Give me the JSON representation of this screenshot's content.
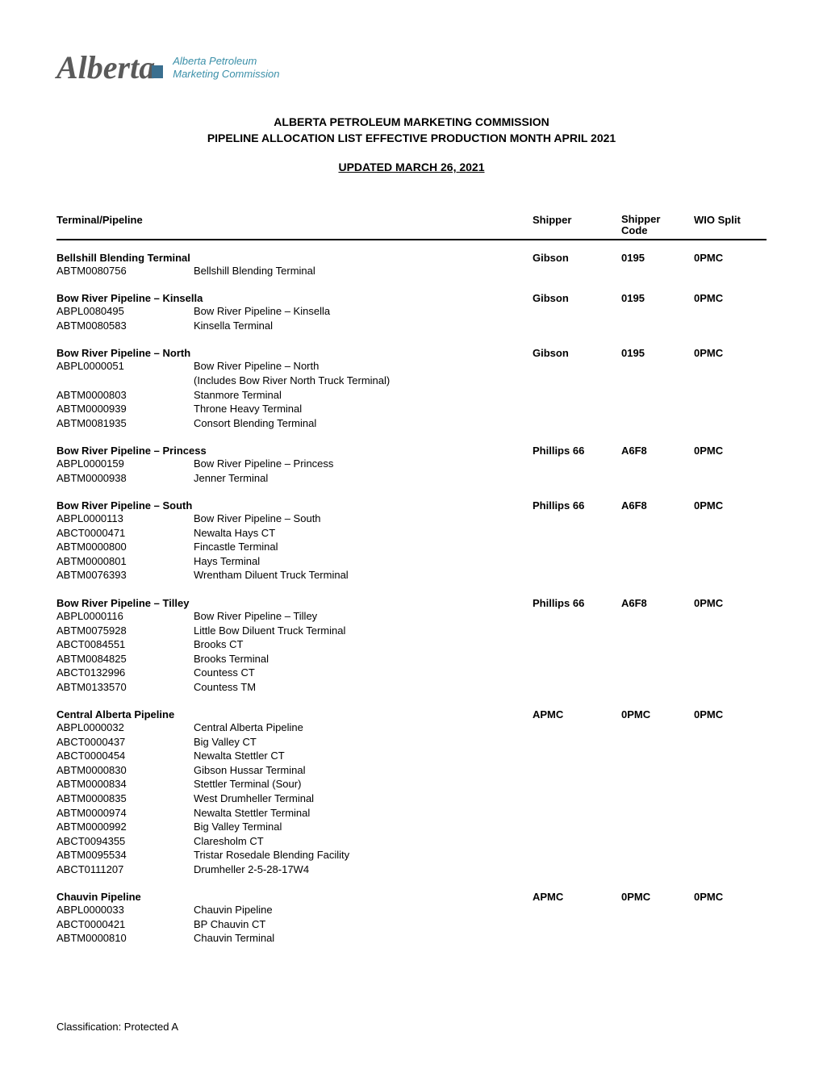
{
  "logo": {
    "wordmark": "Alberta",
    "sub_line1": "Alberta Petroleum",
    "sub_line2": "Marketing Commission"
  },
  "title": {
    "line1": "ALBERTA PETROLEUM MARKETING COMMISSION",
    "line2": "PIPELINE ALLOCATION LIST EFFECTIVE PRODUCTION MONTH APRIL 2021",
    "updated": "UPDATED MARCH 26, 2021"
  },
  "headers": {
    "terminal": "Terminal/Pipeline",
    "shipper": "Shipper",
    "shipper_code_l1": "Shipper",
    "shipper_code_l2": "Code",
    "wio": "WIO Split"
  },
  "sections": [
    {
      "name": "Bellshill Blending Terminal",
      "shipper": "Gibson",
      "code": "0195",
      "wio": "0PMC",
      "rows": [
        {
          "id": "ABTM0080756",
          "desc": "Bellshill Blending Terminal"
        }
      ]
    },
    {
      "name": "Bow River Pipeline – Kinsella",
      "shipper": "Gibson",
      "code": "0195",
      "wio": "0PMC",
      "rows": [
        {
          "id": "ABPL0080495",
          "desc": "Bow River Pipeline – Kinsella"
        },
        {
          "id": "ABTM0080583",
          "desc": "Kinsella Terminal"
        }
      ]
    },
    {
      "name": "Bow River Pipeline – North",
      "shipper": "Gibson",
      "code": "0195",
      "wio": "0PMC",
      "rows": [
        {
          "id": "ABPL0000051",
          "desc": "Bow River Pipeline – North"
        },
        {
          "id": "",
          "desc": "(Includes Bow River North Truck Terminal)"
        },
        {
          "id": "ABTM0000803",
          "desc": "Stanmore Terminal"
        },
        {
          "id": "ABTM0000939",
          "desc": "Throne Heavy Terminal"
        },
        {
          "id": "ABTM0081935",
          "desc": "Consort Blending Terminal"
        }
      ]
    },
    {
      "name": "Bow River Pipeline – Princess",
      "shipper": "Phillips 66",
      "code": "A6F8",
      "wio": "0PMC",
      "rows": [
        {
          "id": "ABPL0000159",
          "desc": "Bow River Pipeline – Princess"
        },
        {
          "id": "ABTM0000938",
          "desc": "Jenner Terminal"
        }
      ]
    },
    {
      "name": "Bow River Pipeline – South",
      "shipper": "Phillips 66",
      "code": "A6F8",
      "wio": "0PMC",
      "rows": [
        {
          "id": "ABPL0000113",
          "desc": "Bow River Pipeline – South"
        },
        {
          "id": "ABCT0000471",
          "desc": "Newalta Hays CT"
        },
        {
          "id": "ABTM0000800",
          "desc": "Fincastle Terminal"
        },
        {
          "id": "ABTM0000801",
          "desc": "Hays Terminal"
        },
        {
          "id": "ABTM0076393",
          "desc": "Wrentham Diluent Truck Terminal"
        }
      ]
    },
    {
      "name": "Bow River Pipeline – Tilley",
      "shipper": "Phillips 66",
      "code": "A6F8",
      "wio": "0PMC",
      "rows": [
        {
          "id": "ABPL0000116",
          "desc": "Bow River Pipeline – Tilley"
        },
        {
          "id": "ABTM0075928",
          "desc": "Little Bow Diluent Truck Terminal"
        },
        {
          "id": "ABCT0084551",
          "desc": "Brooks CT"
        },
        {
          "id": "ABTM0084825",
          "desc": "Brooks Terminal"
        },
        {
          "id": "ABCT0132996",
          "desc": "Countess CT"
        },
        {
          "id": "ABTM0133570",
          "desc": "Countess TM"
        }
      ]
    },
    {
      "name": "Central Alberta Pipeline",
      "shipper": "APMC",
      "code": "0PMC",
      "wio": "0PMC",
      "rows": [
        {
          "id": "ABPL0000032",
          "desc": "Central Alberta Pipeline"
        },
        {
          "id": "ABCT0000437",
          "desc": "Big Valley CT"
        },
        {
          "id": "ABCT0000454",
          "desc": "Newalta Stettler CT"
        },
        {
          "id": "ABTM0000830",
          "desc": "Gibson Hussar Terminal"
        },
        {
          "id": "ABTM0000834",
          "desc": "Stettler Terminal (Sour)"
        },
        {
          "id": "ABTM0000835",
          "desc": "West Drumheller Terminal"
        },
        {
          "id": "ABTM0000974",
          "desc": "Newalta Stettler Terminal"
        },
        {
          "id": "ABTM0000992",
          "desc": "Big Valley Terminal"
        },
        {
          "id": "ABCT0094355",
          "desc": "Claresholm CT"
        },
        {
          "id": "ABTM0095534",
          "desc": "Tristar Rosedale Blending Facility"
        },
        {
          "id": "ABCT0111207",
          "desc": "Drumheller 2-5-28-17W4"
        }
      ]
    },
    {
      "name": "Chauvin Pipeline",
      "shipper": "APMC",
      "code": "0PMC",
      "wio": "0PMC",
      "rows": [
        {
          "id": "ABPL0000033",
          "desc": "Chauvin Pipeline"
        },
        {
          "id": "ABCT0000421",
          "desc": "BP Chauvin CT"
        },
        {
          "id": "ABTM0000810",
          "desc": "Chauvin Terminal"
        }
      ]
    }
  ],
  "footer": "Classification: Protected A"
}
